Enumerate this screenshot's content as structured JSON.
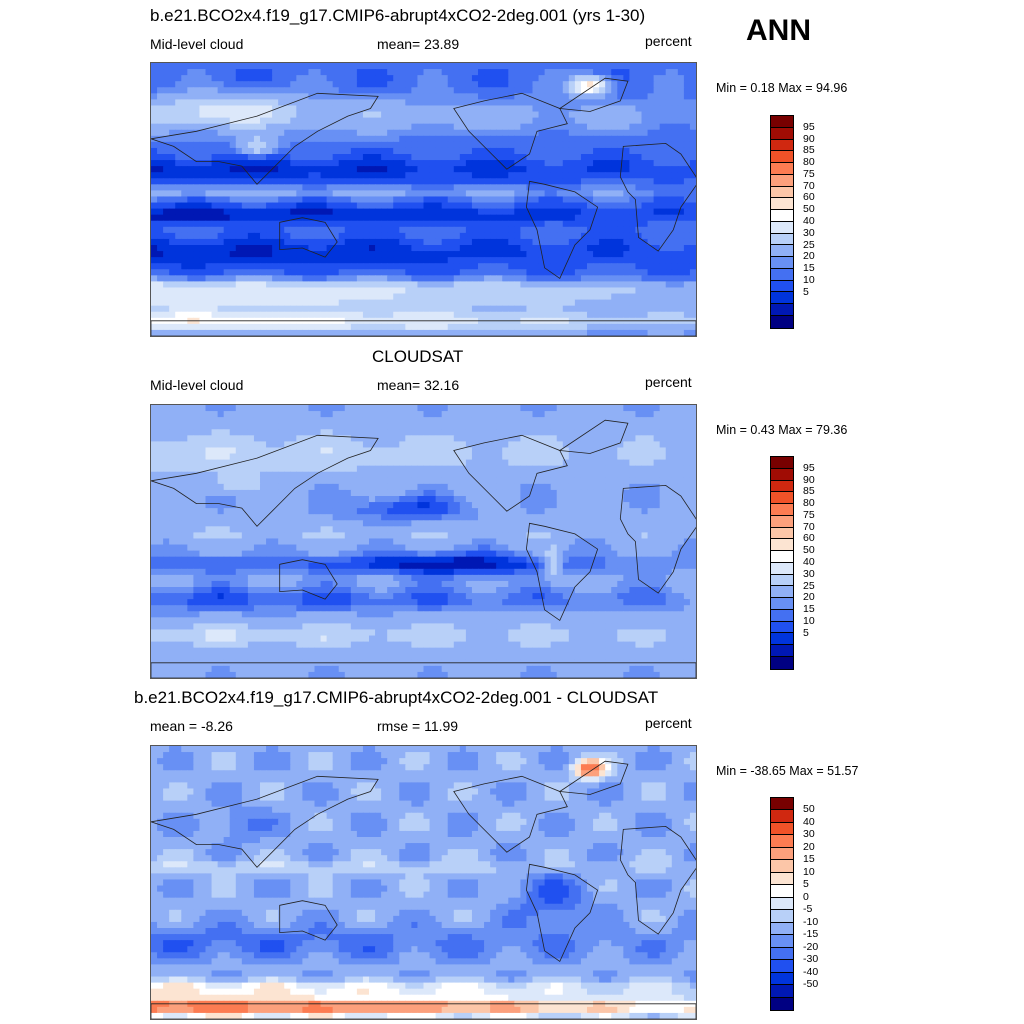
{
  "season": "ANN",
  "scale": {
    "abs_colors": [
      "#000082",
      "#0018b4",
      "#0034dc",
      "#2050f0",
      "#4470f2",
      "#6890f4",
      "#90b0f6",
      "#b8d0f8",
      "#dce8fa",
      "#ffffff",
      "#fce4d2",
      "#fcc6a8",
      "#fca07c",
      "#fc7c52",
      "#f05228",
      "#d02810",
      "#a00c04",
      "#780000"
    ],
    "abs_ticks": [
      "95",
      "90",
      "85",
      "80",
      "75",
      "70",
      "60",
      "50",
      "40",
      "30",
      "25",
      "20",
      "15",
      "10",
      "5"
    ],
    "diff_colors": [
      "#000082",
      "#0018b4",
      "#0034dc",
      "#2050f0",
      "#4470f2",
      "#6890f4",
      "#90b0f6",
      "#b8d0f8",
      "#dce8fa",
      "#ffffff",
      "#fce4d2",
      "#fcc6a8",
      "#fca07c",
      "#fc7c52",
      "#f05228",
      "#d02810",
      "#780000"
    ],
    "diff_ticks": [
      "50",
      "40",
      "30",
      "20",
      "15",
      "10",
      "5",
      "0",
      "-5",
      "-10",
      "-15",
      "-20",
      "-30",
      "-40",
      "-50"
    ]
  },
  "panels": [
    {
      "title": "b.e21.BCO2x4.f19_g17.CMIP6-abrupt4xCO2-2deg.001 (yrs 1-30)",
      "left": "Mid-level cloud",
      "center": "mean=  23.89",
      "right": "percent",
      "minmax": "Min =   0.18 Max =  94.96",
      "field": "model",
      "scale": "abs"
    },
    {
      "title": "CLOUDSAT",
      "left": "Mid-level cloud",
      "center": "mean=  32.16",
      "right": "percent",
      "minmax": "Min =   0.43 Max =  79.36",
      "field": "obs",
      "scale": "abs"
    },
    {
      "title": "b.e21.BCO2x4.f19_g17.CMIP6-abrupt4xCO2-2deg.001 - CLOUDSAT",
      "left": "mean =  -8.26",
      "center": "rmse =  11.99",
      "right": "percent",
      "minmax": "Min = -38.65 Max =  51.57",
      "field": "diff",
      "scale": "diff"
    }
  ]
}
